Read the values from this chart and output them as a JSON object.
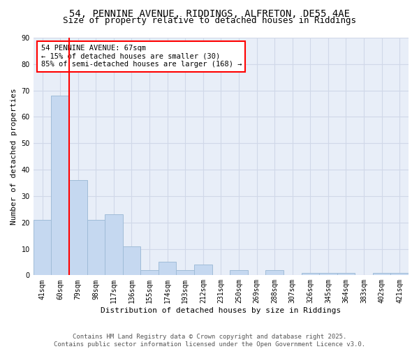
{
  "title": "54, PENNINE AVENUE, RIDDINGS, ALFRETON, DE55 4AE",
  "subtitle": "Size of property relative to detached houses in Riddings",
  "xlabel": "Distribution of detached houses by size in Riddings",
  "ylabel": "Number of detached properties",
  "categories": [
    "41sqm",
    "60sqm",
    "79sqm",
    "98sqm",
    "117sqm",
    "136sqm",
    "155sqm",
    "174sqm",
    "193sqm",
    "212sqm",
    "231sqm",
    "250sqm",
    "269sqm",
    "288sqm",
    "307sqm",
    "326sqm",
    "345sqm",
    "364sqm",
    "383sqm",
    "402sqm",
    "421sqm"
  ],
  "values": [
    21,
    68,
    36,
    21,
    23,
    11,
    2,
    5,
    2,
    4,
    0,
    2,
    0,
    2,
    0,
    1,
    1,
    1,
    0,
    1,
    1
  ],
  "bar_color": "#c5d8f0",
  "bar_edge_color": "#a0bcd8",
  "red_line_x": 1.5,
  "annotation_text": "54 PENNINE AVENUE: 67sqm\n← 15% of detached houses are smaller (30)\n85% of semi-detached houses are larger (168) →",
  "annotation_box_color": "white",
  "annotation_box_edge_color": "red",
  "red_line_color": "red",
  "ylim": [
    0,
    90
  ],
  "yticks": [
    0,
    10,
    20,
    30,
    40,
    50,
    60,
    70,
    80,
    90
  ],
  "grid_color": "#d0d8e8",
  "background_color": "#e8eef8",
  "footer_text": "Contains HM Land Registry data © Crown copyright and database right 2025.\nContains public sector information licensed under the Open Government Licence v3.0.",
  "title_fontsize": 10,
  "subtitle_fontsize": 9,
  "axis_label_fontsize": 8,
  "tick_fontsize": 7,
  "annotation_fontsize": 7.5,
  "footer_fontsize": 6.5
}
